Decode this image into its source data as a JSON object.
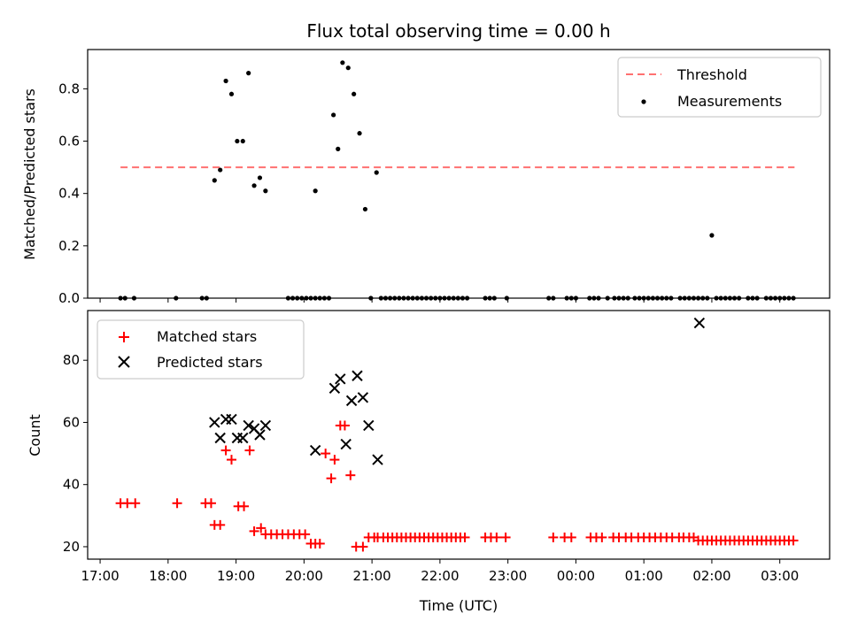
{
  "chart_data": [
    {
      "type": "scatter",
      "title": "Flux total observing time = 0.00 h",
      "xlabel": "",
      "ylabel": "Matched/Predicted stars",
      "xlim": [
        "16:49",
        "03:44"
      ],
      "ylim": [
        0,
        0.95
      ],
      "yticks": [
        "0.0",
        "0.2",
        "0.4",
        "0.6",
        "0.8"
      ],
      "grid": false,
      "legend_position": "top-right",
      "threshold": {
        "name": "Threshold",
        "value": 0.5,
        "x_start": "17:18",
        "x_end": "03:13",
        "color": "#ff7070"
      },
      "series": [
        {
          "name": "Measurements",
          "color": "#000000",
          "x": [
            "17:18",
            "17:22",
            "17:30",
            "18:07",
            "18:30",
            "18:34",
            "18:41",
            "18:46",
            "18:51",
            "18:56",
            "19:01",
            "19:06",
            "19:11",
            "19:16",
            "19:21",
            "19:26",
            "19:46",
            "19:50",
            "19:54",
            "19:58",
            "20:02",
            "20:06",
            "20:10",
            "20:14",
            "20:10",
            "20:18",
            "20:22",
            "20:26",
            "20:30",
            "20:34",
            "20:39",
            "20:44",
            "20:49",
            "20:54",
            "20:59",
            "21:04",
            "21:08",
            "21:12",
            "21:16",
            "21:20",
            "21:24",
            "21:28",
            "21:32",
            "21:36",
            "21:40",
            "21:44",
            "21:48",
            "21:52",
            "21:56",
            "22:00",
            "22:04",
            "22:08",
            "22:12",
            "22:16",
            "22:20",
            "22:24",
            "22:40",
            "22:44",
            "22:48",
            "22:59",
            "23:36",
            "23:40",
            "23:52",
            "23:56",
            "00:00",
            "00:12",
            "00:16",
            "00:20",
            "00:28",
            "00:34",
            "00:38",
            "00:42",
            "00:46",
            "00:52",
            "00:56",
            "01:00",
            "01:04",
            "01:08",
            "01:12",
            "01:16",
            "01:20",
            "01:24",
            "01:32",
            "01:36",
            "01:40",
            "01:44",
            "01:48",
            "01:52",
            "01:56",
            "02:00",
            "02:04",
            "02:08",
            "02:12",
            "02:16",
            "02:20",
            "02:24",
            "02:32",
            "02:36",
            "02:40",
            "02:48",
            "02:52",
            "02:56",
            "03:00",
            "03:04",
            "03:08",
            "03:12"
          ],
          "y": [
            0,
            0,
            0,
            0,
            0,
            0,
            0.45,
            0.49,
            0.83,
            0.78,
            0.6,
            0.6,
            0.86,
            0.43,
            0.46,
            0.41,
            0,
            0,
            0,
            0,
            0,
            0,
            0,
            0,
            0.41,
            0,
            0,
            0.7,
            0.57,
            0.9,
            0.88,
            0.78,
            0.63,
            0.34,
            0,
            0.48,
            0,
            0,
            0,
            0,
            0,
            0,
            0,
            0,
            0,
            0,
            0,
            0,
            0,
            0,
            0,
            0,
            0,
            0,
            0,
            0,
            0,
            0,
            0,
            0,
            0,
            0,
            0,
            0,
            0,
            0,
            0,
            0,
            0,
            0,
            0,
            0,
            0,
            0,
            0,
            0,
            0,
            0,
            0,
            0,
            0,
            0,
            0,
            0,
            0,
            0,
            0,
            0,
            0,
            0.24,
            0,
            0,
            0,
            0,
            0,
            0,
            0,
            0,
            0,
            0,
            0,
            0,
            0,
            0,
            0,
            0
          ]
        }
      ]
    },
    {
      "type": "scatter",
      "title": "",
      "xlabel": "Time (UTC)",
      "ylabel": "Count",
      "xlim": [
        "16:49",
        "03:44"
      ],
      "ylim": [
        16,
        96
      ],
      "yticks": [
        "20",
        "40",
        "60",
        "80"
      ],
      "xticks": [
        "17:00",
        "18:00",
        "19:00",
        "20:00",
        "21:00",
        "22:00",
        "23:00",
        "00:00",
        "01:00",
        "02:00",
        "03:00"
      ],
      "grid": false,
      "legend_position": "top-left",
      "series": [
        {
          "name": "Matched stars",
          "color": "#ff0000",
          "marker": "+",
          "x": [
            "17:18",
            "17:24",
            "17:31",
            "18:08",
            "18:33",
            "18:38",
            "18:41",
            "18:46",
            "18:51",
            "18:56",
            "19:02",
            "19:07",
            "19:12",
            "19:16",
            "19:22",
            "19:26",
            "19:31",
            "19:36",
            "19:41",
            "19:46",
            "19:51",
            "19:56",
            "20:01",
            "20:06",
            "20:10",
            "20:14",
            "20:19",
            "20:24",
            "20:27",
            "20:32",
            "20:36",
            "20:41",
            "20:46",
            "20:52",
            "20:57",
            "21:02",
            "21:05",
            "21:10",
            "21:14",
            "21:18",
            "21:22",
            "21:26",
            "21:30",
            "21:34",
            "21:38",
            "21:42",
            "21:46",
            "21:50",
            "21:54",
            "21:58",
            "22:02",
            "22:06",
            "22:10",
            "22:14",
            "22:18",
            "22:22",
            "22:40",
            "22:45",
            "22:50",
            "22:58",
            "23:40",
            "23:50",
            "23:56",
            "00:13",
            "00:18",
            "00:23",
            "00:33",
            "00:38",
            "00:44",
            "00:49",
            "00:55",
            "01:00",
            "01:05",
            "01:10",
            "01:15",
            "01:20",
            "01:25",
            "01:31",
            "01:35",
            "01:40",
            "01:44",
            "01:48",
            "01:52",
            "01:56",
            "02:00",
            "02:04",
            "02:08",
            "02:12",
            "02:16",
            "02:20",
            "02:24",
            "02:28",
            "02:32",
            "02:36",
            "02:40",
            "02:44",
            "02:48",
            "02:52",
            "02:56",
            "03:00",
            "03:04",
            "03:08",
            "03:12"
          ],
          "y": [
            34,
            34,
            34,
            34,
            34,
            34,
            27,
            27,
            51,
            48,
            33,
            33,
            51,
            25,
            26,
            24,
            24,
            24,
            24,
            24,
            24,
            24,
            24,
            21,
            21,
            21,
            50,
            42,
            48,
            59,
            59,
            43,
            20,
            20,
            23,
            23,
            23,
            23,
            23,
            23,
            23,
            23,
            23,
            23,
            23,
            23,
            23,
            23,
            23,
            23,
            23,
            23,
            23,
            23,
            23,
            23,
            23,
            23,
            23,
            23,
            23,
            23,
            23,
            23,
            23,
            23,
            23,
            23,
            23,
            23,
            23,
            23,
            23,
            23,
            23,
            23,
            23,
            23,
            23,
            23,
            23,
            22,
            22,
            22,
            22,
            22,
            22,
            22,
            22,
            22,
            22,
            22,
            22,
            22,
            22,
            22,
            22,
            22,
            22,
            22,
            22,
            22,
            22
          ]
        },
        {
          "name": "Predicted stars",
          "color": "#000000",
          "marker": "x",
          "x": [
            "18:41",
            "18:46",
            "18:51",
            "18:56",
            "19:01",
            "19:06",
            "19:11",
            "19:16",
            "19:21",
            "19:26",
            "20:10",
            "20:27",
            "20:32",
            "20:37",
            "20:42",
            "20:47",
            "20:52",
            "20:57",
            "21:05",
            "01:49"
          ],
          "y": [
            60,
            55,
            61,
            61,
            55,
            55,
            59,
            58,
            56,
            59,
            51,
            71,
            74,
            53,
            67,
            75,
            68,
            59,
            48,
            92
          ]
        }
      ]
    }
  ]
}
